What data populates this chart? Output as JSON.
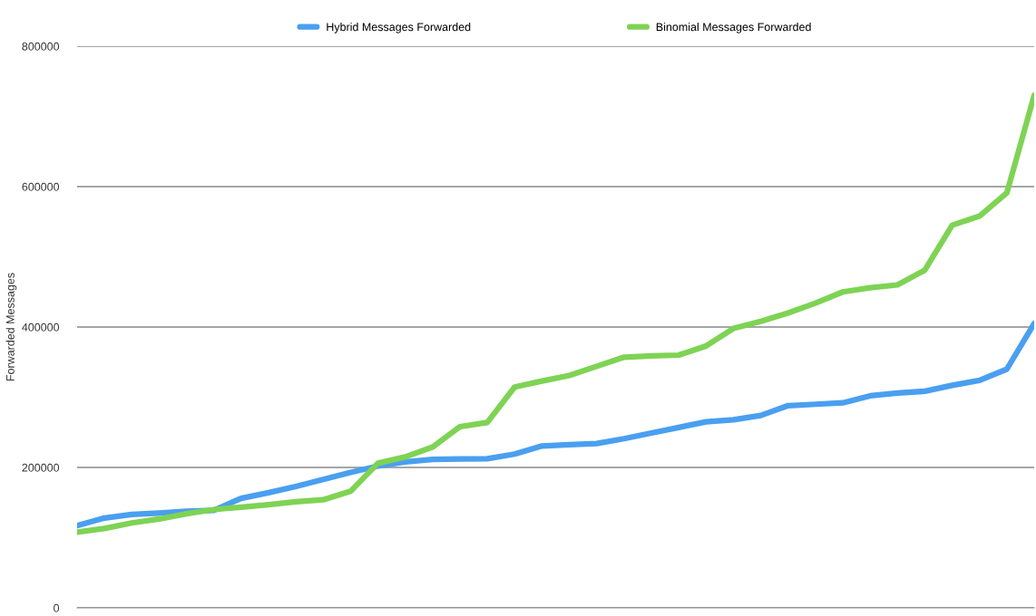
{
  "chart_data": {
    "type": "line",
    "ylabel": "Forwarded Messages",
    "categories": [
      null,
      null,
      null,
      null,
      null,
      null,
      null,
      null,
      null,
      null,
      null,
      null,
      null,
      null,
      null,
      null,
      null,
      null,
      null,
      null,
      null,
      null,
      null,
      null,
      null,
      null,
      null,
      null,
      null,
      null,
      null,
      null,
      null,
      null,
      null,
      null
    ],
    "series": [
      {
        "name": "Hybrid Messages Forwarded",
        "color": "#4a9ff0",
        "values": [
          117000,
          128000,
          133000,
          135000,
          137500,
          139000,
          156000,
          164000,
          173000,
          183000,
          193000,
          202000,
          208000,
          211500,
          212000,
          212500,
          219000,
          230500,
          232500,
          234000,
          241000,
          249000,
          257000,
          265000,
          268000,
          274000,
          288000,
          290000,
          292000,
          302000,
          306000,
          308500,
          317000,
          324000,
          340000,
          405000
        ]
      },
      {
        "name": "Binomial Messages Forwarded",
        "color": "#7ed354",
        "values": [
          108000,
          113000,
          121000,
          126500,
          134000,
          140000,
          143500,
          147000,
          151000,
          154000,
          166000,
          206000,
          215000,
          229000,
          258000,
          264000,
          314500,
          323000,
          331000,
          344000,
          357000,
          359000,
          360000,
          373000,
          398000,
          408000,
          420000,
          434000,
          450000,
          456000,
          460000,
          481000,
          545000,
          558000,
          591000,
          730000
        ]
      }
    ],
    "ylim": [
      0,
      800000
    ],
    "yticks": [
      0,
      200000,
      400000,
      600000,
      800000
    ],
    "grid": "y",
    "legend": "top",
    "marker": "none",
    "line_style": "solid"
  }
}
